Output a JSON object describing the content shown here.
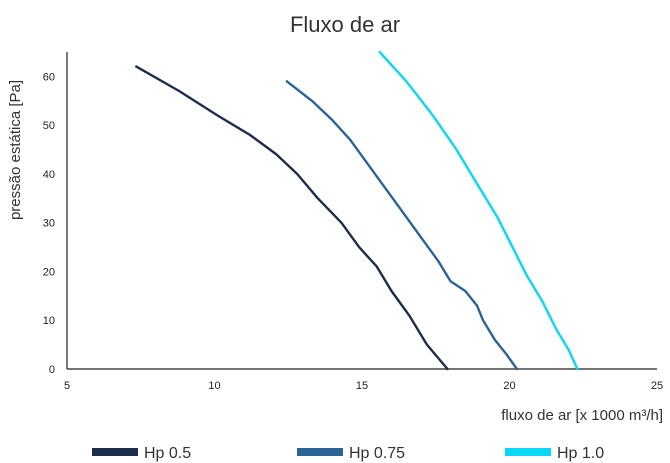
{
  "chart_data": {
    "type": "line",
    "title": "Fluxo de ar",
    "xlabel": "fluxo de ar [x 1000 m³/h]",
    "ylabel": "pressão estática [Pa]",
    "xlim": [
      5,
      25
    ],
    "ylim": [
      0,
      65
    ],
    "xticks": [
      5,
      10,
      15,
      20,
      25
    ],
    "yticks": [
      0,
      10,
      20,
      30,
      40,
      50,
      60
    ],
    "grid": false,
    "legend": "bottom",
    "series": [
      {
        "name": "Hp 0.5",
        "color": "#1b2e4b",
        "x": [
          7.35,
          8.8,
          10.1,
          11.2,
          12.1,
          12.8,
          13.5,
          14.3,
          14.9,
          15.5,
          16.0,
          16.6,
          17.2,
          17.9
        ],
        "y": [
          62,
          57,
          52,
          48,
          44,
          40,
          35,
          30,
          25,
          21,
          16,
          11,
          5,
          0
        ]
      },
      {
        "name": "Hp 0.75",
        "color": "#2a6499",
        "x": [
          12.45,
          13.3,
          14.0,
          14.6,
          15.2,
          15.8,
          16.4,
          17.0,
          17.6,
          18.0,
          18.5,
          18.9,
          19.1,
          19.5,
          19.9,
          20.25
        ],
        "y": [
          59,
          55,
          51,
          47,
          42,
          37,
          32,
          27,
          22,
          18,
          16,
          13,
          10,
          6,
          3,
          0
        ]
      },
      {
        "name": "Hp 1.0",
        "color": "#08d7f7",
        "x": [
          15.6,
          16.5,
          17.4,
          18.2,
          18.9,
          19.6,
          20.1,
          20.6,
          21.1,
          21.6,
          22.0,
          22.3
        ],
        "y": [
          65,
          59,
          52,
          45,
          38,
          31,
          25,
          19,
          14,
          8,
          4,
          0
        ]
      }
    ]
  }
}
